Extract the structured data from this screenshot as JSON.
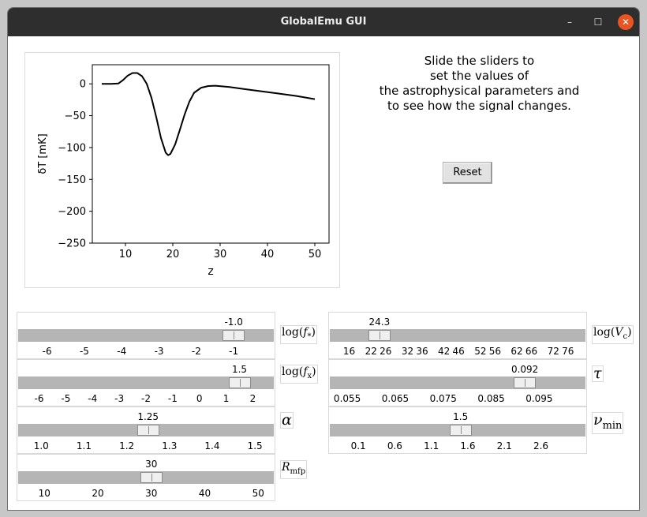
{
  "window": {
    "title": "GlobalEmu GUI"
  },
  "window_controls": {
    "minimize": "–",
    "maximize": "☐",
    "close": "✕"
  },
  "instructions": [
    "Slide the sliders to",
    "set the values of",
    "the astrophysical parameters and",
    "to see how the signal changes."
  ],
  "reset_label": "Reset",
  "chart_data": {
    "type": "line",
    "xlabel": "z",
    "ylabel": "δT [mK]",
    "xlim": [
      3,
      53
    ],
    "ylim": [
      -250,
      30
    ],
    "xticks": [
      10,
      20,
      30,
      40,
      50
    ],
    "yticks": [
      0,
      -50,
      -100,
      -150,
      -200,
      -250
    ],
    "grid": false,
    "x": [
      5,
      7,
      8.5,
      9.5,
      10.5,
      11.5,
      12.5,
      13.5,
      14.5,
      15.5,
      16.5,
      17.5,
      18.5,
      19,
      19.5,
      20.5,
      21.5,
      22.5,
      23.5,
      24.5,
      26,
      27.5,
      29,
      32,
      35,
      38,
      42,
      46,
      50
    ],
    "y": [
      0,
      0,
      0.5,
      6,
      13,
      17,
      17,
      12,
      0,
      -22,
      -52,
      -85,
      -108,
      -112,
      -110,
      -95,
      -72,
      -48,
      -28,
      -14,
      -6,
      -3.5,
      -3,
      -5,
      -8,
      -11,
      -15,
      -19,
      -24
    ]
  },
  "sliders": {
    "log_fstar": {
      "label_base": "log(",
      "label_var": "f",
      "label_sub": "*",
      "label_end": ")",
      "value": "-1.0",
      "level": -1.0,
      "min": -6.5,
      "max": -0.2,
      "ticks": [
        "-6",
        "-5",
        "-4",
        "-3",
        "-2",
        "-1"
      ]
    },
    "log_fx": {
      "label_base": "log(",
      "label_var": "f",
      "label_sub": "x",
      "label_end": ")",
      "value": "1.5",
      "level": 1.5,
      "min": -6.4,
      "max": 2.4,
      "ticks": [
        "-6",
        "-5",
        "-4",
        "-3",
        "-2",
        "-1",
        "0",
        "1",
        "2"
      ]
    },
    "alpha": {
      "label": "α",
      "value": "1.25",
      "level": 1.25,
      "min": 0.97,
      "max": 1.52,
      "ticks": [
        "1.0",
        "1.1",
        "1.2",
        "1.3",
        "1.4",
        "1.5"
      ]
    },
    "rmfp": {
      "label_var": "R",
      "label_sub": "mfp",
      "value": "30",
      "level": 30,
      "min": 7,
      "max": 51,
      "ticks": [
        "10",
        "20",
        "30",
        "40",
        "50"
      ]
    },
    "log_vc": {
      "label_base": "log(",
      "label_var": "V",
      "label_sub": "c",
      "label_end": ")",
      "value": "24.3",
      "level": 24.3,
      "min": 13.5,
      "max": 78,
      "ticks": [
        "16",
        "22",
        "26",
        "32",
        "36",
        "42",
        "46",
        "52",
        "56",
        "62",
        "66",
        "72",
        "76"
      ]
    },
    "tau": {
      "label": "τ",
      "value": "0.092",
      "level": 0.092,
      "min": 0.0535,
      "max": 0.1025,
      "ticks": [
        "0.055",
        "0.065",
        "0.075",
        "0.085",
        "0.095"
      ]
    },
    "nu_min": {
      "label_var": "ν",
      "label_sub": "min",
      "value": "1.5",
      "level": 1.5,
      "min": -0.15,
      "max": 3.07,
      "ticks": [
        "0.1",
        "0.6",
        "1.1",
        "1.6",
        "2.1",
        "2.6"
      ]
    }
  }
}
